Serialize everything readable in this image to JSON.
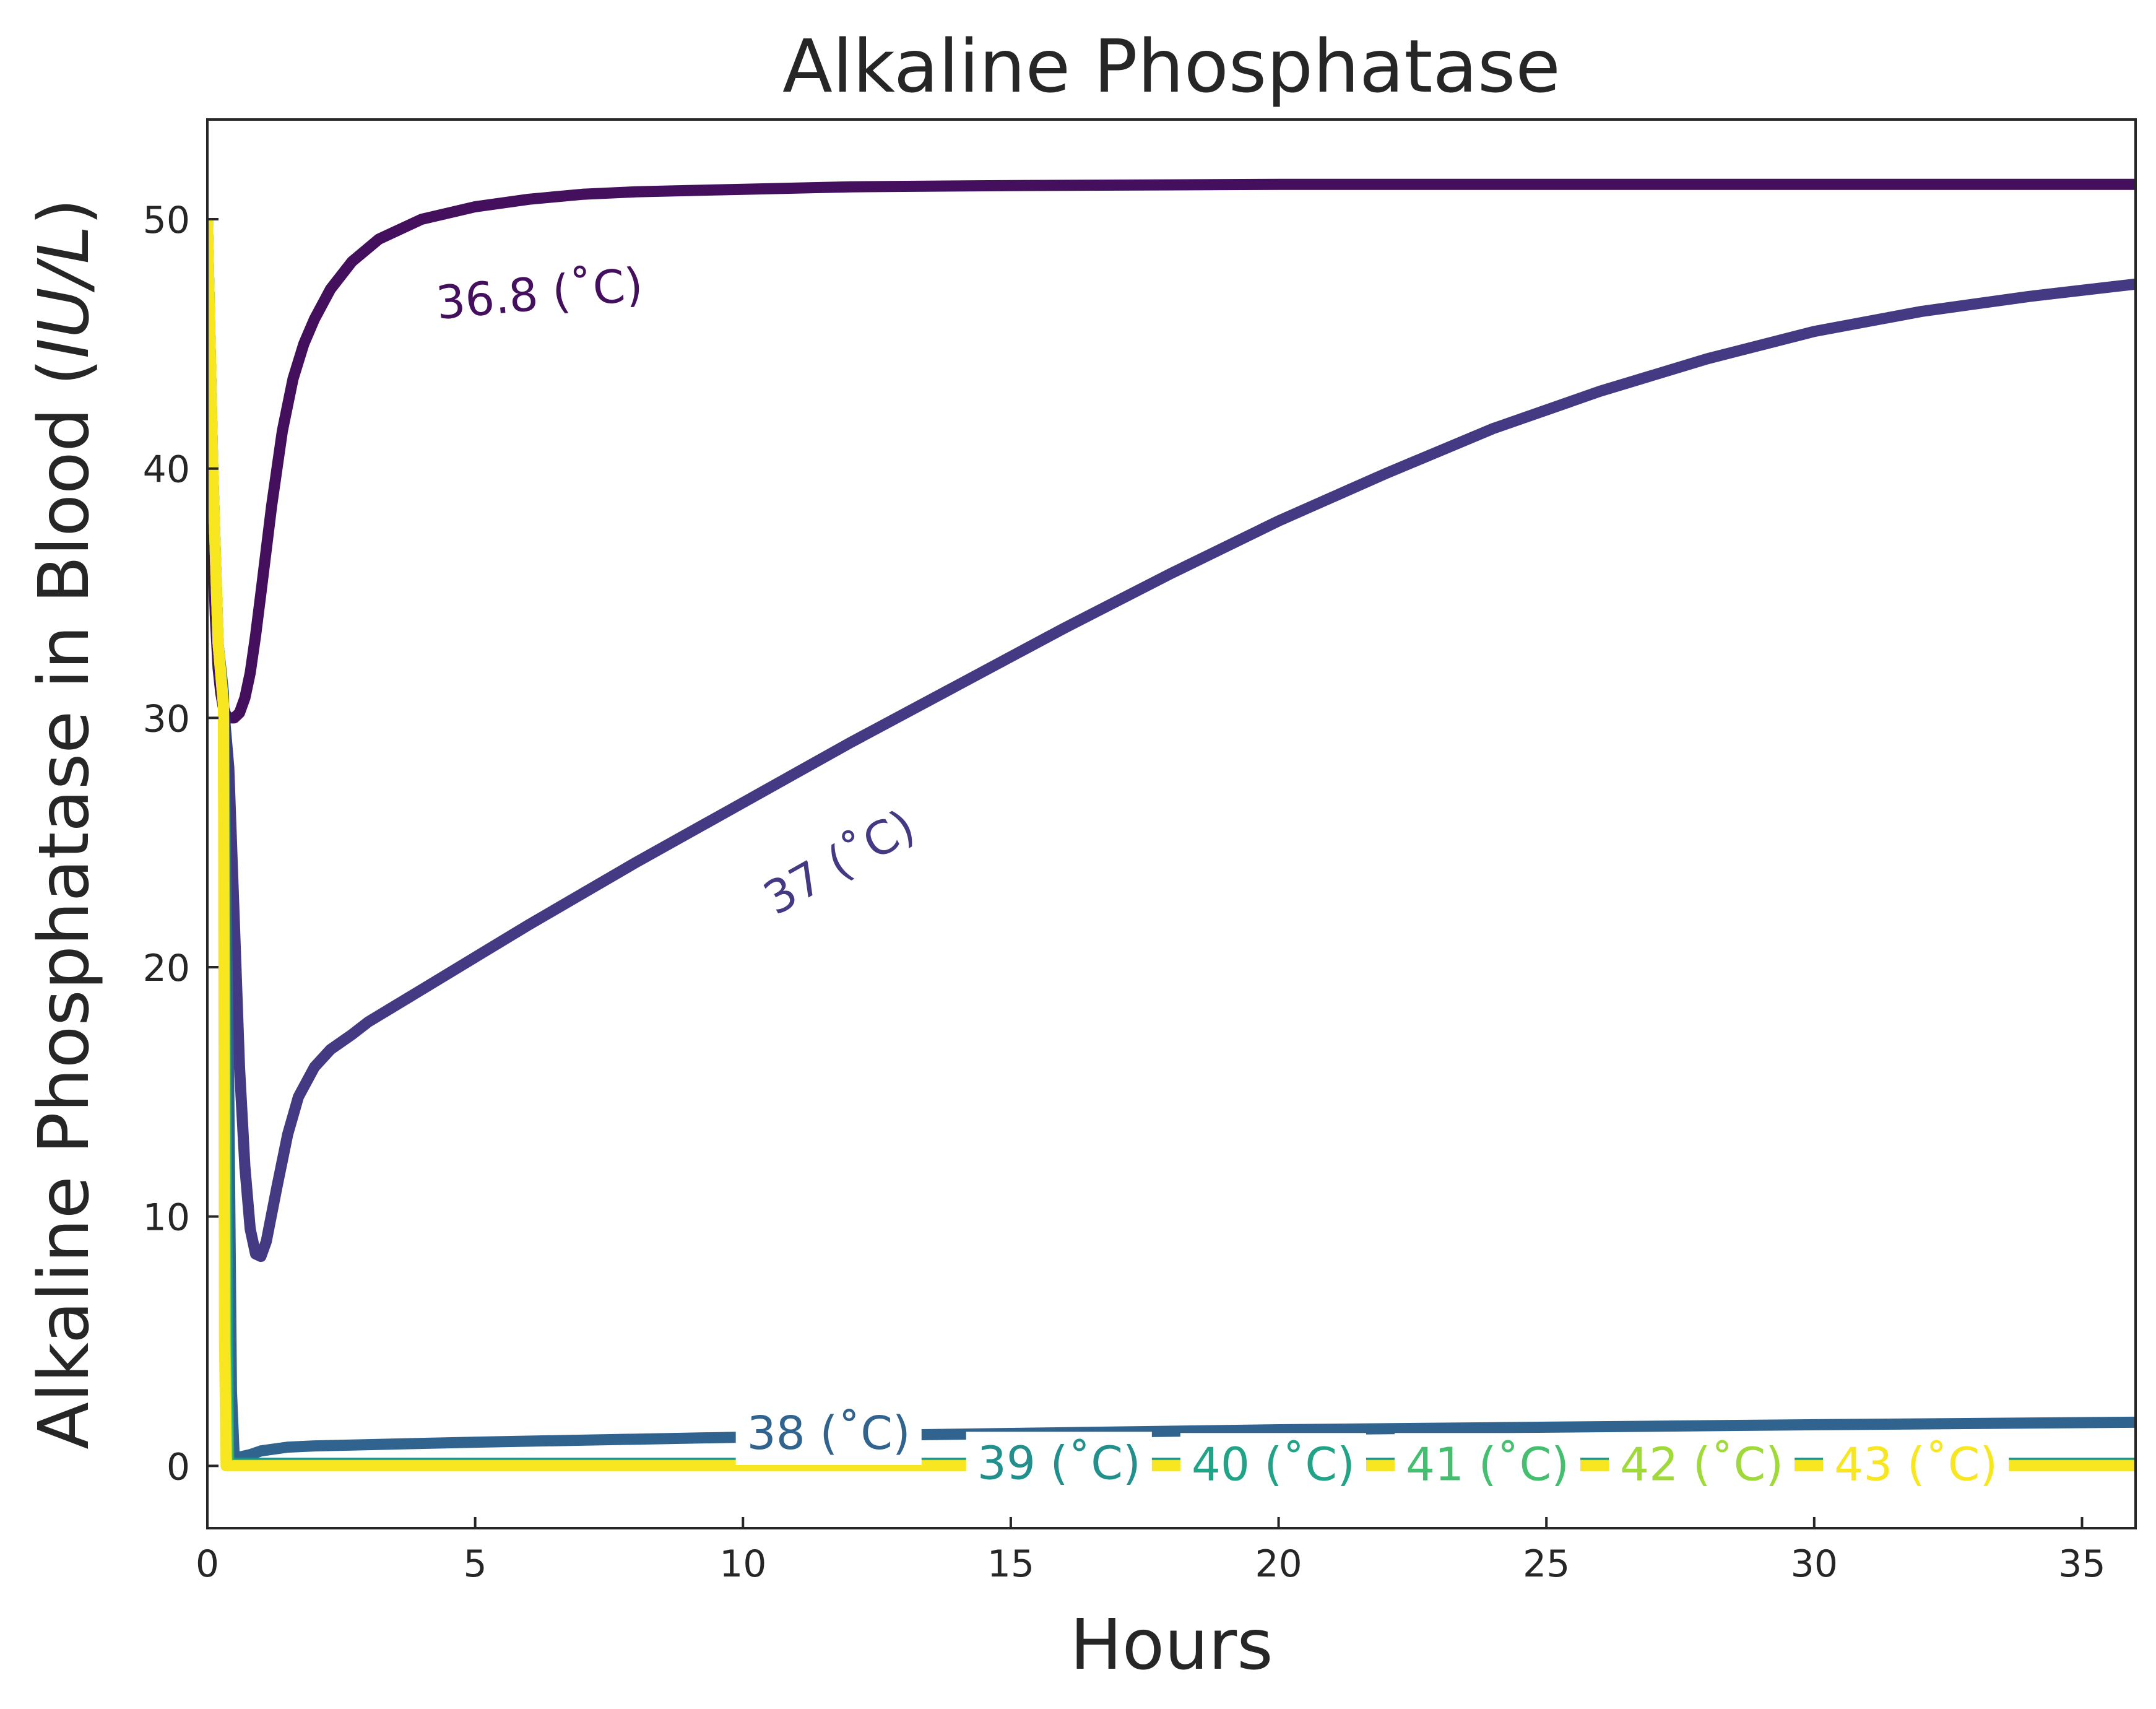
{
  "chart_data": {
    "type": "line",
    "title": "Alkaline Phosphatase",
    "xlabel": "Hours",
    "ylabel_main": "Alkaline Phosphatase in Blood (",
    "ylabel_unit": "IU/L",
    "ylabel_close": ")",
    "xlim": [
      0,
      36
    ],
    "ylim": [
      -2.5,
      54
    ],
    "x_ticks": [
      0,
      5,
      10,
      15,
      20,
      25,
      30,
      35
    ],
    "y_ticks": [
      0,
      10,
      20,
      30,
      40,
      50
    ],
    "x_tick_labels": [
      "0",
      "5",
      "10",
      "15",
      "20",
      "25",
      "30",
      "35"
    ],
    "y_tick_labels": [
      "0",
      "10",
      "20",
      "30",
      "40",
      "50"
    ],
    "grid": false,
    "legend": "none",
    "series": [
      {
        "name": "36.8 (˚C)",
        "color": "#440f5c",
        "x": [
          0,
          0.05,
          0.1,
          0.15,
          0.2,
          0.25,
          0.3,
          0.35,
          0.4,
          0.5,
          0.6,
          0.7,
          0.8,
          0.9,
          1.0,
          1.2,
          1.4,
          1.6,
          1.8,
          2.0,
          2.3,
          2.7,
          3.2,
          4.0,
          5.0,
          6.0,
          7.0,
          8.0,
          10.0,
          12.0,
          15.0,
          20.0,
          25.0,
          30.0,
          36.0
        ],
        "y": [
          50,
          42,
          37,
          34,
          32,
          31,
          30.4,
          30.1,
          30.0,
          30.0,
          30.2,
          30.8,
          31.8,
          33.3,
          35.0,
          38.5,
          41.5,
          43.6,
          45.0,
          46.0,
          47.2,
          48.3,
          49.2,
          50.0,
          50.5,
          50.8,
          51.0,
          51.1,
          51.2,
          51.3,
          51.35,
          51.4,
          51.4,
          51.4,
          51.4
        ],
        "label_x": 6.2,
        "label_y": 47
      },
      {
        "name": "37 (˚C)",
        "color": "#433a83",
        "x": [
          0,
          0.1,
          0.2,
          0.3,
          0.4,
          0.5,
          0.6,
          0.7,
          0.8,
          0.9,
          1.0,
          1.1,
          1.3,
          1.5,
          1.7,
          2.0,
          2.3,
          2.7,
          3.0,
          4.0,
          5.0,
          6.0,
          8.0,
          10.0,
          12.0,
          14.0,
          16.0,
          18.0,
          20.0,
          22.0,
          24.0,
          26.0,
          28.0,
          30.0,
          32.0,
          34.0,
          36.0
        ],
        "y": [
          50,
          40,
          33,
          30.5,
          28,
          22,
          16,
          12,
          9.5,
          8.5,
          8.4,
          9.0,
          11.2,
          13.3,
          14.8,
          16.0,
          16.7,
          17.3,
          17.8,
          19.1,
          20.4,
          21.7,
          24.2,
          26.6,
          29.0,
          31.3,
          33.6,
          35.8,
          37.9,
          39.8,
          41.6,
          43.1,
          44.4,
          45.5,
          46.3,
          46.9,
          47.4
        ],
        "label_x": 11.8,
        "label_y": 24.2
      },
      {
        "name": "38 (˚C)",
        "color": "#30638e",
        "x": [
          0,
          0.1,
          0.2,
          0.3,
          0.4,
          0.45,
          0.5,
          0.6,
          0.8,
          1.0,
          1.5,
          2.0,
          3.0,
          5.0,
          10.0,
          15.0,
          20.0,
          25.0,
          30.0,
          36.0
        ],
        "y": [
          50,
          40,
          33,
          31,
          15,
          3,
          0.4,
          0.35,
          0.45,
          0.6,
          0.75,
          0.8,
          0.85,
          0.95,
          1.15,
          1.3,
          1.45,
          1.55,
          1.65,
          1.75
        ],
        "label_x": 11.6,
        "label_y": 1.3
      },
      {
        "name": "39 (˚C)",
        "color": "#21908d",
        "x": [
          0,
          0.1,
          0.2,
          0.3,
          0.38,
          0.4,
          0.5,
          1.0,
          5.0,
          10.0,
          20.0,
          30.0,
          36.0
        ],
        "y": [
          50,
          40,
          33,
          30.5,
          5,
          0.1,
          0.1,
          0.1,
          0.1,
          0.1,
          0.1,
          0.1,
          0.1
        ],
        "label_x": 15.9,
        "label_y": 0.1
      },
      {
        "name": "40 (˚C)",
        "color": "#20a386",
        "x": [
          0,
          0.1,
          0.2,
          0.3,
          0.36,
          0.4,
          0.5,
          1.0,
          5.0,
          10.0,
          20.0,
          30.0,
          36.0
        ],
        "y": [
          50,
          40,
          33,
          30.5,
          5,
          0.05,
          0.05,
          0.05,
          0.05,
          0.05,
          0.05,
          0.05,
          0.05
        ],
        "label_x": 19.9,
        "label_y": 0.05
      },
      {
        "name": "41 (˚C)",
        "color": "#44bf70",
        "x": [
          0,
          0.1,
          0.2,
          0.3,
          0.34,
          0.38,
          0.5,
          1.0,
          5.0,
          10.0,
          20.0,
          30.0,
          36.0
        ],
        "y": [
          50,
          40,
          33,
          30.5,
          5,
          0.02,
          0.02,
          0.02,
          0.02,
          0.02,
          0.02,
          0.02,
          0.02
        ],
        "label_x": 23.9,
        "label_y": 0.05
      },
      {
        "name": "42 (˚C)",
        "color": "#a0da39",
        "x": [
          0,
          0.1,
          0.2,
          0.3,
          0.33,
          0.36,
          0.5,
          1.0,
          5.0,
          10.0,
          20.0,
          30.0,
          36.0
        ],
        "y": [
          50,
          40,
          33,
          30.5,
          5,
          0.01,
          0.01,
          0.01,
          0.01,
          0.01,
          0.01,
          0.01,
          0.01
        ],
        "label_x": 27.9,
        "label_y": 0.05
      },
      {
        "name": "43 (˚C)",
        "color": "#f8e621",
        "x": [
          0,
          0.1,
          0.2,
          0.3,
          0.32,
          0.35,
          0.5,
          1.0,
          5.0,
          10.0,
          20.0,
          30.0,
          36.0
        ],
        "y": [
          50,
          40,
          33,
          30.5,
          5,
          0.0,
          0.0,
          0.0,
          0.0,
          0.0,
          0.0,
          0.0,
          0.0
        ],
        "label_x": 31.9,
        "label_y": 0.05
      }
    ]
  }
}
